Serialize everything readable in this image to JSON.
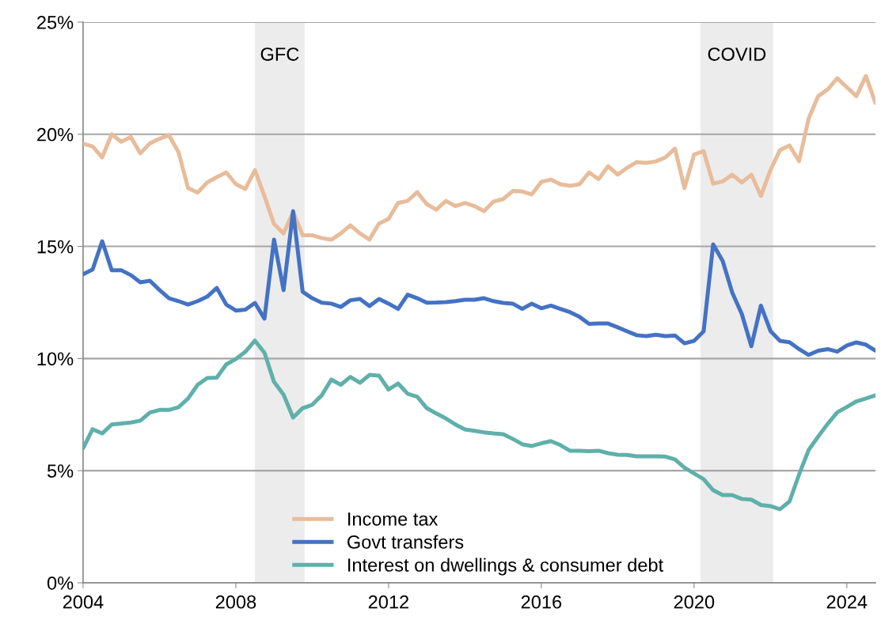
{
  "chart_data": {
    "type": "line",
    "x": [
      2004.0,
      2004.25,
      2004.5,
      2004.75,
      2005.0,
      2005.25,
      2005.5,
      2005.75,
      2006.0,
      2006.25,
      2006.5,
      2006.75,
      2007.0,
      2007.25,
      2007.5,
      2007.75,
      2008.0,
      2008.25,
      2008.5,
      2008.75,
      2009.0,
      2009.25,
      2009.5,
      2009.75,
      2010.0,
      2010.25,
      2010.5,
      2010.75,
      2011.0,
      2011.25,
      2011.5,
      2011.75,
      2012.0,
      2012.25,
      2012.5,
      2012.75,
      2013.0,
      2013.25,
      2013.5,
      2013.75,
      2014.0,
      2014.25,
      2014.5,
      2014.75,
      2015.0,
      2015.25,
      2015.5,
      2015.75,
      2016.0,
      2016.25,
      2016.5,
      2016.75,
      2017.0,
      2017.25,
      2017.5,
      2017.75,
      2018.0,
      2018.25,
      2018.5,
      2018.75,
      2019.0,
      2019.25,
      2019.5,
      2019.75,
      2020.0,
      2020.25,
      2020.5,
      2020.75,
      2021.0,
      2021.25,
      2021.5,
      2021.75,
      2022.0,
      2022.25,
      2022.5,
      2022.75,
      2023.0,
      2023.25,
      2023.5,
      2023.75,
      2024.0,
      2024.25,
      2024.5,
      2024.75
    ],
    "series": [
      {
        "name": "Income tax",
        "color": "#e8bc9b",
        "values": [
          19.58,
          19.46,
          18.97,
          20.0,
          19.67,
          19.88,
          19.15,
          19.6,
          19.8,
          19.96,
          19.2,
          17.6,
          17.4,
          17.85,
          18.09,
          18.3,
          17.78,
          17.56,
          18.4,
          17.24,
          16.0,
          15.58,
          16.54,
          15.5,
          15.5,
          15.37,
          15.3,
          15.58,
          15.94,
          15.58,
          15.31,
          16.02,
          16.23,
          16.94,
          17.03,
          17.42,
          16.89,
          16.64,
          17.03,
          16.8,
          16.94,
          16.8,
          16.57,
          17.0,
          17.11,
          17.47,
          17.45,
          17.32,
          17.88,
          17.98,
          17.77,
          17.7,
          17.77,
          18.3,
          18.0,
          18.58,
          18.2,
          18.51,
          18.76,
          18.72,
          18.79,
          18.97,
          19.36,
          17.6,
          19.1,
          19.25,
          17.8,
          17.9,
          18.2,
          17.85,
          18.2,
          17.25,
          18.4,
          19.3,
          19.5,
          18.8,
          20.7,
          21.7,
          22.0,
          22.5,
          22.1,
          21.7,
          22.6,
          21.4
        ]
      },
      {
        "name": "Govt transfers",
        "color": "#4472c4",
        "values": [
          13.76,
          13.97,
          15.23,
          13.94,
          13.94,
          13.72,
          13.4,
          13.47,
          13.06,
          12.69,
          12.56,
          12.41,
          12.56,
          12.76,
          13.15,
          12.41,
          12.14,
          12.18,
          12.48,
          11.78,
          15.3,
          13.05,
          16.57,
          12.98,
          12.69,
          12.49,
          12.45,
          12.3,
          12.6,
          12.66,
          12.34,
          12.66,
          12.45,
          12.21,
          12.85,
          12.69,
          12.49,
          12.5,
          12.52,
          12.56,
          12.62,
          12.62,
          12.69,
          12.56,
          12.48,
          12.45,
          12.21,
          12.45,
          12.24,
          12.36,
          12.21,
          12.07,
          11.86,
          11.55,
          11.56,
          11.56,
          11.39,
          11.21,
          11.04,
          11.0,
          11.06,
          11.0,
          11.03,
          10.68,
          10.79,
          11.21,
          15.09,
          14.35,
          12.94,
          11.99,
          10.55,
          12.36,
          11.23,
          10.79,
          10.73,
          10.42,
          10.16,
          10.35,
          10.42,
          10.31,
          10.58,
          10.72,
          10.62,
          10.35
        ]
      },
      {
        "name": "Interest on dwellings & consumer debt",
        "color": "#5fb0aa",
        "values": [
          6.0,
          6.85,
          6.66,
          7.06,
          7.1,
          7.15,
          7.23,
          7.59,
          7.71,
          7.71,
          7.83,
          8.22,
          8.83,
          9.13,
          9.15,
          9.74,
          9.98,
          10.3,
          10.8,
          10.26,
          8.96,
          8.39,
          7.37,
          7.79,
          7.94,
          8.36,
          9.06,
          8.83,
          9.18,
          8.92,
          9.27,
          9.24,
          8.62,
          8.89,
          8.43,
          8.3,
          7.79,
          7.55,
          7.33,
          7.06,
          6.84,
          6.78,
          6.71,
          6.66,
          6.63,
          6.42,
          6.18,
          6.1,
          6.22,
          6.32,
          6.14,
          5.89,
          5.89,
          5.87,
          5.89,
          5.78,
          5.71,
          5.7,
          5.64,
          5.64,
          5.64,
          5.63,
          5.5,
          5.13,
          4.88,
          4.62,
          4.13,
          3.91,
          3.91,
          3.74,
          3.71,
          3.47,
          3.42,
          3.28,
          3.63,
          4.83,
          5.92,
          6.52,
          7.09,
          7.6,
          7.84,
          8.09,
          8.22,
          8.36
        ]
      }
    ],
    "xlim": [
      2004,
      2024.75
    ],
    "xticks": [
      2004,
      2008,
      2012,
      2016,
      2020,
      2024
    ],
    "ylim": [
      0,
      25
    ],
    "yticks": [
      {
        "value": 0,
        "label": "0%"
      },
      {
        "value": 5,
        "label": "5%"
      },
      {
        "value": 10,
        "label": "10%"
      },
      {
        "value": 15,
        "label": "15%"
      },
      {
        "value": 20,
        "label": "20%"
      },
      {
        "value": 25,
        "label": "25%"
      }
    ],
    "bands": [
      {
        "axis": "x",
        "from": 2008.5,
        "to": 2009.8,
        "label": "GFC",
        "color": "#ececec"
      },
      {
        "axis": "x",
        "from": 2020.17,
        "to": 2022.07,
        "label": "COVID",
        "color": "#ececec"
      }
    ],
    "grid": "y",
    "legend": "bottom left",
    "marker": "none",
    "line_style": "solid"
  }
}
